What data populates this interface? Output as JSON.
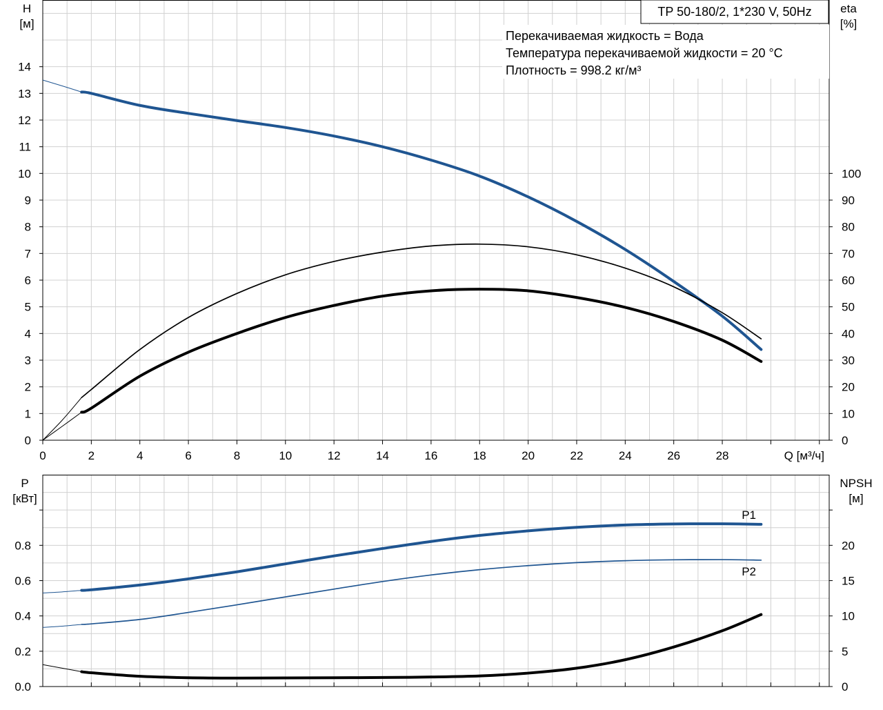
{
  "chart_data": [
    {
      "type": "line",
      "title": "TP 50-180/2, 1*230 V, 50Hz",
      "annotations": [
        "Перекачиваемая жидкость = Вода",
        "Температура перекачиваемой жидкости = 20 °C",
        "Плотность = 998.2 кг/м³"
      ],
      "xlabel": "Q [м³/ч]",
      "ylabel": [
        "H",
        "[м]"
      ],
      "y2label": [
        "eta",
        "[%]"
      ],
      "xlim": [
        0,
        32
      ],
      "ylim": [
        0,
        16.5
      ],
      "y2lim": [
        0,
        165
      ],
      "xticks": [
        0,
        2,
        4,
        6,
        8,
        10,
        12,
        14,
        16,
        18,
        20,
        22,
        24,
        26,
        28
      ],
      "yticks": [
        0,
        1,
        2,
        3,
        4,
        5,
        6,
        7,
        8,
        9,
        10,
        11,
        12,
        13,
        14
      ],
      "y2ticks": [
        0,
        10,
        20,
        30,
        40,
        50,
        60,
        70,
        80,
        90,
        100
      ],
      "grid": true,
      "series": [
        {
          "axis": "y",
          "color": "#1f5591",
          "width": 4,
          "x": [
            1.6,
            2,
            4,
            6,
            8,
            10,
            12,
            14,
            16,
            18,
            20,
            22,
            24,
            26,
            28,
            29.6
          ],
          "y": [
            13.05,
            13.0,
            12.55,
            12.25,
            11.98,
            11.72,
            11.4,
            11.0,
            10.5,
            9.9,
            9.12,
            8.2,
            7.15,
            5.95,
            4.65,
            3.4
          ],
          "ext_x": [
            0,
            0.8,
            1.6
          ],
          "ext_y": [
            13.5,
            13.28,
            13.05
          ]
        },
        {
          "axis": "y2",
          "color": "#000000",
          "width": 1.7,
          "x": [
            1.6,
            2,
            4,
            6,
            8,
            10,
            12,
            14,
            16,
            18,
            20,
            22,
            24,
            26,
            28,
            29.6
          ],
          "y": [
            16,
            19,
            34,
            46,
            55,
            62,
            67,
            70.5,
            72.8,
            73.5,
            72.5,
            69.5,
            64.5,
            57.5,
            47.8,
            38
          ],
          "ext_x": [
            0,
            0.8,
            1.6
          ],
          "ext_y": [
            0,
            7.5,
            16
          ]
        },
        {
          "axis": "y2",
          "color": "#000000",
          "width": 4,
          "x": [
            1.6,
            2,
            4,
            6,
            8,
            10,
            12,
            14,
            16,
            18,
            20,
            22,
            24,
            26,
            28,
            29.6
          ],
          "y": [
            10.5,
            12,
            24,
            33,
            40,
            46,
            50.5,
            54,
            56,
            56.6,
            56,
            53.5,
            49.8,
            44.5,
            37.5,
            29.5
          ],
          "ext_x": [
            0,
            0.8,
            1.6
          ],
          "ext_y": [
            0,
            5.2,
            10.5
          ]
        }
      ]
    },
    {
      "type": "line",
      "ylabel": [
        "P",
        "[кВт]"
      ],
      "y2label": [
        "NPSH",
        "[м]"
      ],
      "xlim": [
        0,
        32
      ],
      "ylim": [
        0,
        1.2
      ],
      "y2lim": [
        0,
        30
      ],
      "yticks": [
        0.0,
        0.2,
        0.4,
        0.6,
        0.8
      ],
      "yticklabels": [
        "0.0",
        "0.2",
        "0.4",
        "0.6",
        "0.8"
      ],
      "y2ticks": [
        0,
        5,
        10,
        15,
        20
      ],
      "grid": true,
      "series": [
        {
          "name": "P1",
          "axis": "y",
          "color": "#1f5591",
          "width": 4,
          "x": [
            1.6,
            2,
            4,
            6,
            8,
            10,
            12,
            14,
            16,
            18,
            20,
            22,
            24,
            26,
            28,
            29.6
          ],
          "y": [
            0.545,
            0.548,
            0.575,
            0.61,
            0.65,
            0.695,
            0.74,
            0.782,
            0.822,
            0.856,
            0.882,
            0.902,
            0.915,
            0.921,
            0.922,
            0.919
          ],
          "ext_x": [
            0,
            0.8,
            1.6
          ],
          "ext_y": [
            0.53,
            0.536,
            0.545
          ]
        },
        {
          "name": "P2",
          "axis": "y",
          "color": "#1f5591",
          "width": 1.7,
          "x": [
            1.6,
            2,
            4,
            6,
            8,
            10,
            12,
            14,
            16,
            18,
            20,
            22,
            24,
            26,
            28,
            29.6
          ],
          "y": [
            0.352,
            0.355,
            0.38,
            0.42,
            0.463,
            0.508,
            0.552,
            0.595,
            0.632,
            0.662,
            0.685,
            0.702,
            0.713,
            0.718,
            0.719,
            0.716
          ],
          "ext_x": [
            0,
            0.8,
            1.6
          ],
          "ext_y": [
            0.335,
            0.342,
            0.352
          ]
        },
        {
          "axis": "y2",
          "color": "#000000",
          "width": 4,
          "x": [
            1.6,
            2,
            4,
            6,
            8,
            10,
            12,
            14,
            16,
            18,
            20,
            22,
            24,
            26,
            28,
            29.6
          ],
          "y": [
            2.1,
            1.95,
            1.45,
            1.25,
            1.2,
            1.22,
            1.25,
            1.28,
            1.35,
            1.5,
            1.9,
            2.6,
            3.8,
            5.6,
            7.9,
            10.2
          ],
          "ext_x": [
            0,
            0.8,
            1.6
          ],
          "ext_y": [
            3.1,
            2.6,
            2.1
          ]
        }
      ]
    }
  ]
}
